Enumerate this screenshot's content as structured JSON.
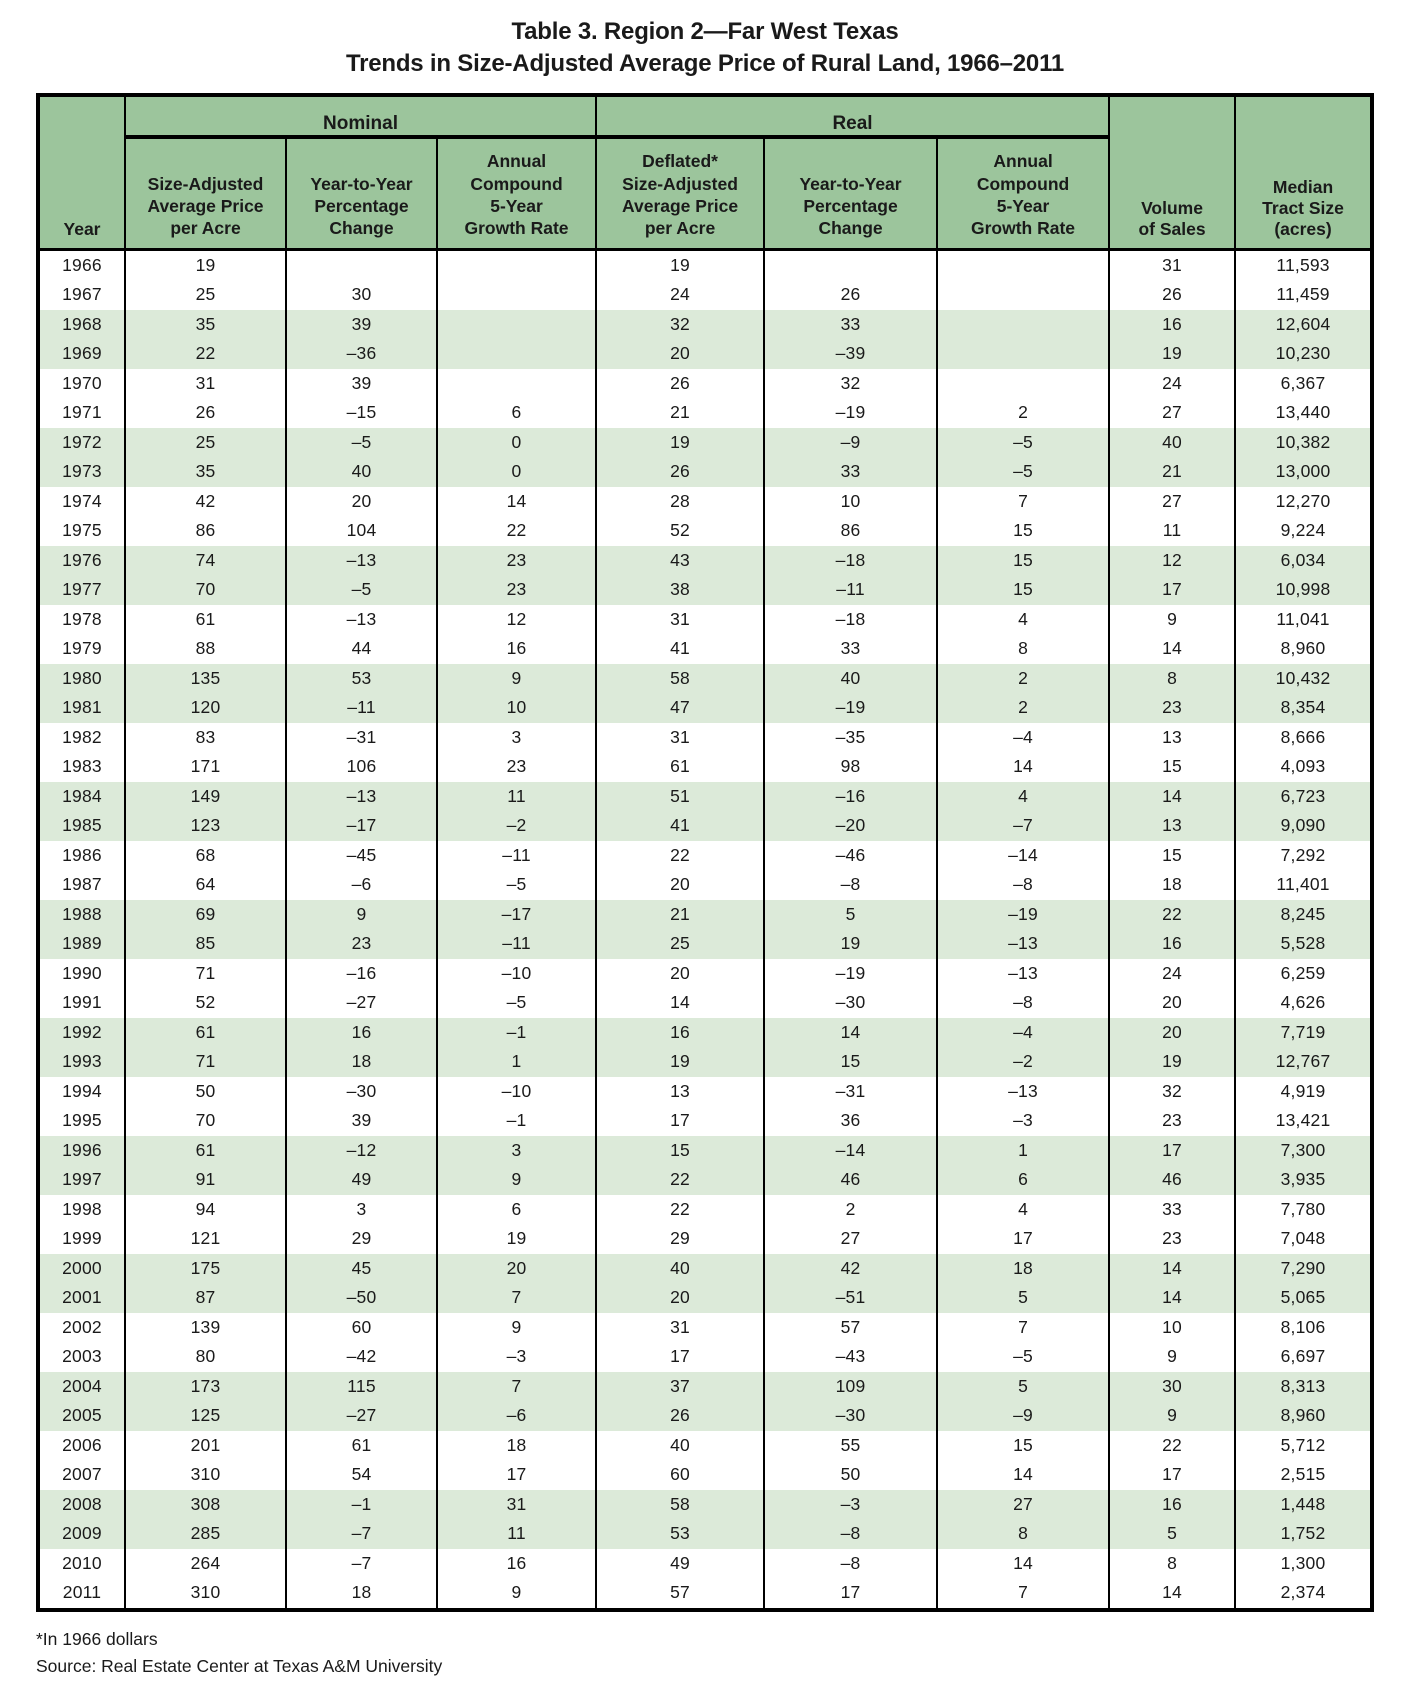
{
  "page": {
    "title_line1": "Table 3. Region 2—Far West Texas",
    "title_line2": "Trends in Size-Adjusted Average Price of Rural Land, 1966–2011",
    "footnote": "*In 1966 dollars",
    "source": "Source: Real Estate Center at Texas A&M University"
  },
  "colors": {
    "header_bg": "#9cc59c",
    "stripe_bg": "#dcead9",
    "border": "#000000"
  },
  "table": {
    "group_headers": {
      "nominal": "Nominal",
      "real": "Real"
    },
    "columns": {
      "year": "Year",
      "nominal_price": "Size-Adjusted\nAverage Price\nper Acre",
      "nominal_change": "Year-to-Year\nPercentage\nChange",
      "nominal_growth": "Annual\nCompound\n5-Year\nGrowth Rate",
      "real_price": "Deflated*\nSize-Adjusted\nAverage Price\nper Acre",
      "real_change": "Year-to-Year\nPercentage\nChange",
      "real_growth": "Annual\nCompound\n5-Year\nGrowth Rate",
      "volume": "Volume\nof Sales",
      "median": "Median\nTract Size\n(acres)"
    },
    "rows": [
      [
        "1966",
        "19",
        "",
        "",
        "19",
        "",
        "",
        "31",
        "11,593"
      ],
      [
        "1967",
        "25",
        "30",
        "",
        "24",
        "26",
        "",
        "26",
        "11,459"
      ],
      [
        "1968",
        "35",
        "39",
        "",
        "32",
        "33",
        "",
        "16",
        "12,604"
      ],
      [
        "1969",
        "22",
        "–36",
        "",
        "20",
        "–39",
        "",
        "19",
        "10,230"
      ],
      [
        "1970",
        "31",
        "39",
        "",
        "26",
        "32",
        "",
        "24",
        "6,367"
      ],
      [
        "1971",
        "26",
        "–15",
        "6",
        "21",
        "–19",
        "2",
        "27",
        "13,440"
      ],
      [
        "1972",
        "25",
        "–5",
        "0",
        "19",
        "–9",
        "–5",
        "40",
        "10,382"
      ],
      [
        "1973",
        "35",
        "40",
        "0",
        "26",
        "33",
        "–5",
        "21",
        "13,000"
      ],
      [
        "1974",
        "42",
        "20",
        "14",
        "28",
        "10",
        "7",
        "27",
        "12,270"
      ],
      [
        "1975",
        "86",
        "104",
        "22",
        "52",
        "86",
        "15",
        "11",
        "9,224"
      ],
      [
        "1976",
        "74",
        "–13",
        "23",
        "43",
        "–18",
        "15",
        "12",
        "6,034"
      ],
      [
        "1977",
        "70",
        "–5",
        "23",
        "38",
        "–11",
        "15",
        "17",
        "10,998"
      ],
      [
        "1978",
        "61",
        "–13",
        "12",
        "31",
        "–18",
        "4",
        "9",
        "11,041"
      ],
      [
        "1979",
        "88",
        "44",
        "16",
        "41",
        "33",
        "8",
        "14",
        "8,960"
      ],
      [
        "1980",
        "135",
        "53",
        "9",
        "58",
        "40",
        "2",
        "8",
        "10,432"
      ],
      [
        "1981",
        "120",
        "–11",
        "10",
        "47",
        "–19",
        "2",
        "23",
        "8,354"
      ],
      [
        "1982",
        "83",
        "–31",
        "3",
        "31",
        "–35",
        "–4",
        "13",
        "8,666"
      ],
      [
        "1983",
        "171",
        "106",
        "23",
        "61",
        "98",
        "14",
        "15",
        "4,093"
      ],
      [
        "1984",
        "149",
        "–13",
        "11",
        "51",
        "–16",
        "4",
        "14",
        "6,723"
      ],
      [
        "1985",
        "123",
        "–17",
        "–2",
        "41",
        "–20",
        "–7",
        "13",
        "9,090"
      ],
      [
        "1986",
        "68",
        "–45",
        "–11",
        "22",
        "–46",
        "–14",
        "15",
        "7,292"
      ],
      [
        "1987",
        "64",
        "–6",
        "–5",
        "20",
        "–8",
        "–8",
        "18",
        "11,401"
      ],
      [
        "1988",
        "69",
        "9",
        "–17",
        "21",
        "5",
        "–19",
        "22",
        "8,245"
      ],
      [
        "1989",
        "85",
        "23",
        "–11",
        "25",
        "19",
        "–13",
        "16",
        "5,528"
      ],
      [
        "1990",
        "71",
        "–16",
        "–10",
        "20",
        "–19",
        "–13",
        "24",
        "6,259"
      ],
      [
        "1991",
        "52",
        "–27",
        "–5",
        "14",
        "–30",
        "–8",
        "20",
        "4,626"
      ],
      [
        "1992",
        "61",
        "16",
        "–1",
        "16",
        "14",
        "–4",
        "20",
        "7,719"
      ],
      [
        "1993",
        "71",
        "18",
        "1",
        "19",
        "15",
        "–2",
        "19",
        "12,767"
      ],
      [
        "1994",
        "50",
        "–30",
        "–10",
        "13",
        "–31",
        "–13",
        "32",
        "4,919"
      ],
      [
        "1995",
        "70",
        "39",
        "–1",
        "17",
        "36",
        "–3",
        "23",
        "13,421"
      ],
      [
        "1996",
        "61",
        "–12",
        "3",
        "15",
        "–14",
        "1",
        "17",
        "7,300"
      ],
      [
        "1997",
        "91",
        "49",
        "9",
        "22",
        "46",
        "6",
        "46",
        "3,935"
      ],
      [
        "1998",
        "94",
        "3",
        "6",
        "22",
        "2",
        "4",
        "33",
        "7,780"
      ],
      [
        "1999",
        "121",
        "29",
        "19",
        "29",
        "27",
        "17",
        "23",
        "7,048"
      ],
      [
        "2000",
        "175",
        "45",
        "20",
        "40",
        "42",
        "18",
        "14",
        "7,290"
      ],
      [
        "2001",
        "87",
        "–50",
        "7",
        "20",
        "–51",
        "5",
        "14",
        "5,065"
      ],
      [
        "2002",
        "139",
        "60",
        "9",
        "31",
        "57",
        "7",
        "10",
        "8,106"
      ],
      [
        "2003",
        "80",
        "–42",
        "–3",
        "17",
        "–43",
        "–5",
        "9",
        "6,697"
      ],
      [
        "2004",
        "173",
        "115",
        "7",
        "37",
        "109",
        "5",
        "30",
        "8,313"
      ],
      [
        "2005",
        "125",
        "–27",
        "–6",
        "26",
        "–30",
        "–9",
        "9",
        "8,960"
      ],
      [
        "2006",
        "201",
        "61",
        "18",
        "40",
        "55",
        "15",
        "22",
        "5,712"
      ],
      [
        "2007",
        "310",
        "54",
        "17",
        "60",
        "50",
        "14",
        "17",
        "2,515"
      ],
      [
        "2008",
        "308",
        "–1",
        "31",
        "58",
        "–3",
        "27",
        "16",
        "1,448"
      ],
      [
        "2009",
        "285",
        "–7",
        "11",
        "53",
        "–8",
        "8",
        "5",
        "1,752"
      ],
      [
        "2010",
        "264",
        "–7",
        "16",
        "49",
        "–8",
        "14",
        "8",
        "1,300"
      ],
      [
        "2011",
        "310",
        "18",
        "9",
        "57",
        "17",
        "7",
        "14",
        "2,374"
      ]
    ]
  }
}
